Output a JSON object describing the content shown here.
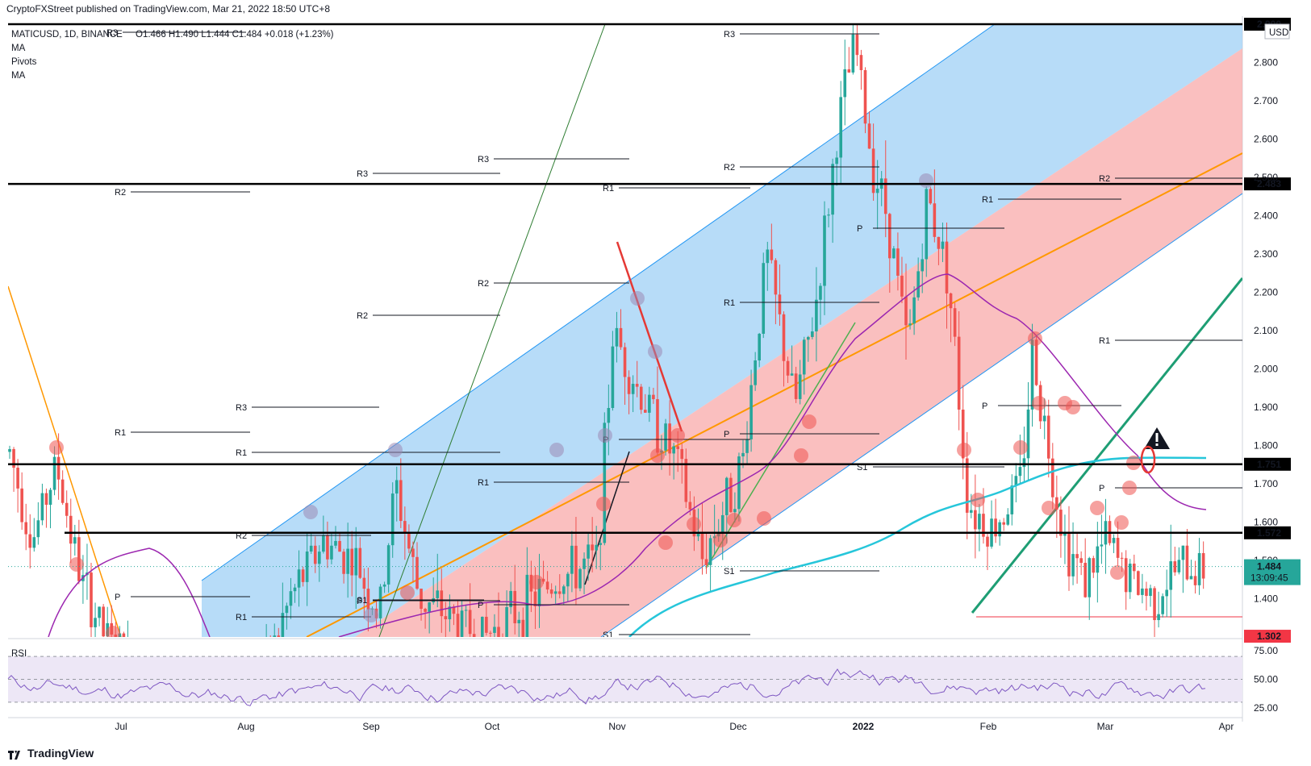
{
  "header": {
    "published": "CryptoFXStreet published on TradingView.com, Mar 21, 2022 18:50 UTC+8"
  },
  "legend": {
    "symbol": "MATICUSD, 1D, BINANCE",
    "ohlc": "O1.466  H1.490  L1.444  C1.484  +0.018 (+1.23%)",
    "studies": [
      "MA",
      "Pivots",
      "MA"
    ]
  },
  "currency_badge": "USD",
  "footer": {
    "brand": "TradingView"
  },
  "colors": {
    "up": "#26a69a",
    "down": "#ef5350",
    "channel_blue": "#9fd0f5",
    "channel_red": "#f8aaa9",
    "ma_fast": "#9c27b0",
    "ma_slow": "#26c6da",
    "trend_orange": "#ff9800",
    "trend_green": "#1e9e74",
    "rsi": "#7e57c2",
    "rsi_band": "#ede7f6"
  },
  "chart_data": {
    "type": "candlestick",
    "pair": "MATICUSD",
    "timeframe": "1D",
    "exchange": "BINANCE",
    "x_labels": [
      "Jul",
      "Aug",
      "Sep",
      "Oct",
      "Nov",
      "Dec",
      "2022",
      "Feb",
      "Mar",
      "Apr"
    ],
    "y_ticks": [
      "2.800",
      "2.700",
      "2.600",
      "2.500",
      "2.400",
      "2.300",
      "2.200",
      "2.100",
      "2.000",
      "1.900",
      "1.800",
      "1.700",
      "1.600",
      "1.500",
      "1.400"
    ],
    "ylim": [
      1.3,
      2.9
    ],
    "key_levels": [
      {
        "label": "2.900",
        "value": 2.9,
        "color": "#000000"
      },
      {
        "label": "2.483",
        "value": 2.483,
        "color": "#000000"
      },
      {
        "label": "1.751",
        "value": 1.751,
        "color": "#000000"
      },
      {
        "label": "1.572",
        "value": 1.572,
        "color": "#000000"
      },
      {
        "label": "1.302",
        "value": 1.302,
        "color": "#f23645"
      }
    ],
    "last_price": {
      "label": "1.484",
      "countdown": "13:09:45",
      "value": 1.484,
      "color": "#26a69a"
    },
    "pivot_labels": [
      "R3",
      "R2",
      "R1",
      "P",
      "S1"
    ],
    "rsi": {
      "title": "RSI",
      "ticks": [
        "75.00",
        "50.00",
        "25.00"
      ],
      "ylim": [
        20,
        80
      ]
    }
  }
}
